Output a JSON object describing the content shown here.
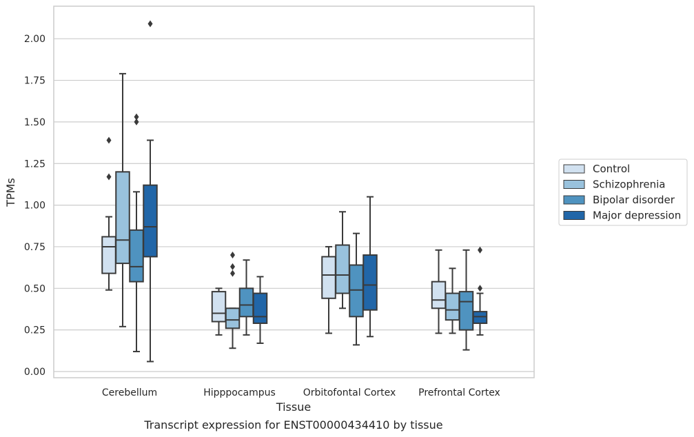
{
  "chart_data": {
    "type": "box",
    "title": "Transcript expression for ENST00000434410 by tissue",
    "xlabel": "Tissue",
    "ylabel": "TPMs",
    "ylim": [
      -0.03,
      2.2
    ],
    "yticks": [
      0.0,
      0.25,
      0.5,
      0.75,
      1.0,
      1.25,
      1.5,
      1.75,
      2.0
    ],
    "ytick_labels": [
      "0.00",
      "0.25",
      "0.50",
      "0.75",
      "1.00",
      "1.25",
      "1.50",
      "1.75",
      "2.00"
    ],
    "categories": [
      "Cerebellum",
      "Hipppocampus",
      "Orbitofontal Cortex",
      "Prefrontal Cortex"
    ],
    "grid": true,
    "legend_position": "right",
    "series": [
      {
        "name": "Control",
        "color": "#d1e1f0",
        "boxes": [
          {
            "whisker_low": 0.49,
            "q1": 0.59,
            "median": 0.75,
            "q3": 0.81,
            "whisker_high": 0.93,
            "outliers": [
              1.17,
              1.39
            ]
          },
          {
            "whisker_low": 0.22,
            "q1": 0.3,
            "median": 0.35,
            "q3": 0.48,
            "whisker_high": 0.5,
            "outliers": []
          },
          {
            "whisker_low": 0.23,
            "q1": 0.44,
            "median": 0.58,
            "q3": 0.69,
            "whisker_high": 0.75,
            "outliers": []
          },
          {
            "whisker_low": 0.23,
            "q1": 0.38,
            "median": 0.43,
            "q3": 0.54,
            "whisker_high": 0.73,
            "outliers": []
          }
        ]
      },
      {
        "name": "Schizophrenia",
        "color": "#99c2dd",
        "boxes": [
          {
            "whisker_low": 0.27,
            "q1": 0.65,
            "median": 0.79,
            "q3": 1.2,
            "whisker_high": 1.79,
            "outliers": []
          },
          {
            "whisker_low": 0.14,
            "q1": 0.26,
            "median": 0.31,
            "q3": 0.38,
            "whisker_high": 0.38,
            "outliers": [
              0.59,
              0.63,
              0.7
            ]
          },
          {
            "whisker_low": 0.38,
            "q1": 0.47,
            "median": 0.58,
            "q3": 0.76,
            "whisker_high": 0.96,
            "outliers": []
          },
          {
            "whisker_low": 0.23,
            "q1": 0.31,
            "median": 0.37,
            "q3": 0.47,
            "whisker_high": 0.62,
            "outliers": []
          }
        ]
      },
      {
        "name": "Bipolar disorder",
        "color": "#4f93c0",
        "boxes": [
          {
            "whisker_low": 0.12,
            "q1": 0.54,
            "median": 0.63,
            "q3": 0.85,
            "whisker_high": 1.08,
            "outliers": [
              1.5,
              1.53
            ]
          },
          {
            "whisker_low": 0.22,
            "q1": 0.33,
            "median": 0.4,
            "q3": 0.5,
            "whisker_high": 0.67,
            "outliers": []
          },
          {
            "whisker_low": 0.16,
            "q1": 0.33,
            "median": 0.49,
            "q3": 0.64,
            "whisker_high": 0.83,
            "outliers": []
          },
          {
            "whisker_low": 0.13,
            "q1": 0.25,
            "median": 0.42,
            "q3": 0.48,
            "whisker_high": 0.73,
            "outliers": []
          }
        ]
      },
      {
        "name": "Major depression",
        "color": "#2166a8",
        "boxes": [
          {
            "whisker_low": 0.06,
            "q1": 0.69,
            "median": 0.87,
            "q3": 1.12,
            "whisker_high": 1.39,
            "outliers": [
              2.09
            ]
          },
          {
            "whisker_low": 0.17,
            "q1": 0.29,
            "median": 0.33,
            "q3": 0.47,
            "whisker_high": 0.57,
            "outliers": []
          },
          {
            "whisker_low": 0.21,
            "q1": 0.37,
            "median": 0.52,
            "q3": 0.7,
            "whisker_high": 1.05,
            "outliers": []
          },
          {
            "whisker_low": 0.22,
            "q1": 0.29,
            "median": 0.33,
            "q3": 0.36,
            "whisker_high": 0.47,
            "outliers": [
              0.5,
              0.73
            ]
          }
        ]
      }
    ]
  }
}
